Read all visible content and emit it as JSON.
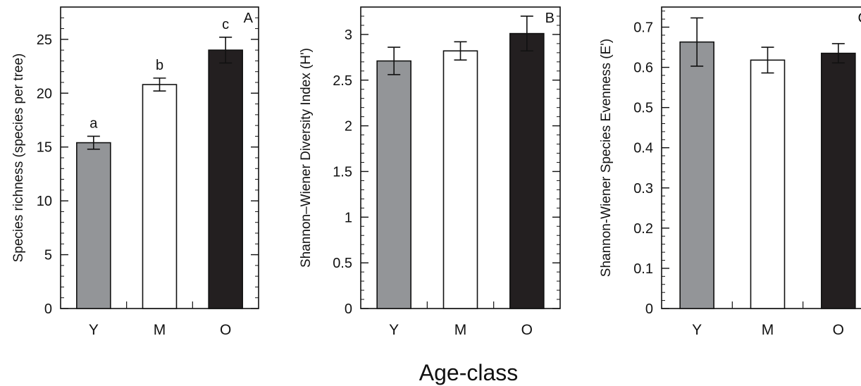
{
  "figure": {
    "xlabel": "Age-class"
  },
  "chart_data": [
    {
      "type": "bar",
      "panel": "A",
      "categories": [
        "Y",
        "M",
        "O"
      ],
      "values": [
        15.4,
        20.8,
        24.0
      ],
      "errors": [
        0.6,
        0.6,
        1.2
      ],
      "colors": [
        "#939598",
        "#ffffff",
        "#231f20"
      ],
      "significance": [
        "a",
        "b",
        "c"
      ],
      "ylabel": "Species richness (species per tree)",
      "ylim": [
        0,
        28
      ],
      "yticks": [
        0,
        5,
        10,
        15,
        20,
        25
      ],
      "yticklabels": [
        "0",
        "5",
        "10",
        "15",
        "20",
        "25"
      ],
      "minor_step": 1
    },
    {
      "type": "bar",
      "panel": "B",
      "categories": [
        "Y",
        "M",
        "O"
      ],
      "values": [
        2.71,
        2.82,
        3.01
      ],
      "errors": [
        0.15,
        0.1,
        0.19
      ],
      "colors": [
        "#939598",
        "#ffffff",
        "#231f20"
      ],
      "significance": [],
      "ylabel": "Shannon–Wiener Diversity Index (H')",
      "ylim": [
        0,
        3.3
      ],
      "yticks": [
        0,
        0.5,
        1,
        1.5,
        2,
        2.5,
        3
      ],
      "yticklabels": [
        "0",
        "0.5",
        "1",
        "1.5",
        "2",
        "2.5",
        "3"
      ],
      "minor_step": 0.1
    },
    {
      "type": "bar",
      "panel": "C",
      "categories": [
        "Y",
        "M",
        "O"
      ],
      "values": [
        0.663,
        0.618,
        0.635
      ],
      "errors": [
        0.06,
        0.032,
        0.024
      ],
      "colors": [
        "#939598",
        "#ffffff",
        "#231f20"
      ],
      "significance": [],
      "ylabel": "Shannon-Wiener Species Evenness (E')",
      "ylim": [
        0,
        0.75
      ],
      "yticks": [
        0,
        0.1,
        0.2,
        0.3,
        0.4,
        0.5,
        0.6,
        0.7
      ],
      "yticklabels": [
        "0",
        "0.1",
        "0.2",
        "0.3",
        "0.4",
        "0.5",
        "0.6",
        "0.7"
      ],
      "minor_step": 0.02
    }
  ]
}
